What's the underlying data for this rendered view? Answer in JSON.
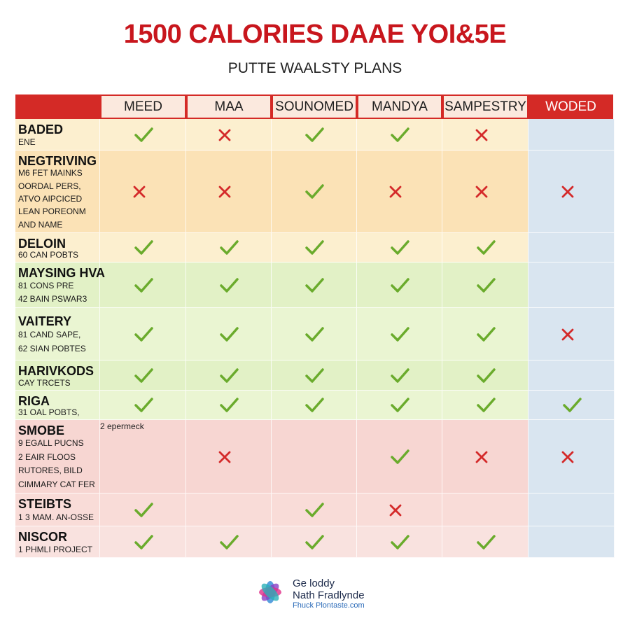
{
  "header": {
    "title": "1500 CALORIES DAAE YOI&5E",
    "subtitle": "PUTTE WAALSTY PLANS"
  },
  "table": {
    "columns": [
      "MEED",
      "MAA",
      "SOUNOMED",
      "MANDYA",
      "SAMPESTRY",
      "WODED"
    ],
    "rows": [
      {
        "title": "BADED",
        "details": [
          "ENE"
        ],
        "marks": [
          true,
          false,
          true,
          true,
          false,
          null
        ]
      },
      {
        "title": "NEGTRIVING",
        "details": [
          "M6 FET MAINKS",
          "OORDAL PERS,",
          "ATVO AIPCICED",
          "LEAN POREONM",
          "AND NAME"
        ],
        "marks": [
          false,
          false,
          true,
          false,
          false,
          false
        ]
      },
      {
        "title": "DELOIN",
        "details": [
          "60 CAN POBTS"
        ],
        "marks": [
          true,
          true,
          true,
          true,
          true,
          null
        ]
      },
      {
        "title": "MAYSING HVA",
        "details": [
          "81 CONS PRE",
          "42 BAIN PSWAR3"
        ],
        "marks": [
          true,
          true,
          true,
          true,
          true,
          null
        ]
      },
      {
        "title": "VAITERY",
        "details": [
          "81 CAND SAPE,",
          "62 SIAN POBTES"
        ],
        "marks": [
          true,
          true,
          true,
          true,
          true,
          false
        ]
      },
      {
        "title": "HARIVKODS",
        "details": [
          "CAY TRCETS"
        ],
        "marks": [
          true,
          true,
          true,
          true,
          true,
          null
        ]
      },
      {
        "title": "RIGA",
        "details": [
          "31 OAL POBTS,"
        ],
        "marks": [
          true,
          true,
          true,
          true,
          true,
          true
        ]
      },
      {
        "title": "SMOBE",
        "details": [
          "9 EGALL PUCNS",
          "2 EAIR FLOOS",
          "RUTORES, BILD",
          "CIMMARY CAT FER"
        ],
        "note": "2 epermeck",
        "marks": [
          null,
          false,
          null,
          true,
          false,
          false
        ]
      },
      {
        "title": "STEIBTS",
        "details": [
          "1 3 MAM. AN-OSSE"
        ],
        "marks": [
          true,
          null,
          true,
          false,
          null,
          null
        ]
      },
      {
        "title": "NISCOR",
        "details": [
          "1 PHMLI PROJECT"
        ],
        "marks": [
          true,
          true,
          true,
          true,
          true,
          null
        ]
      }
    ]
  },
  "footer": {
    "lines": [
      "Ge loddy",
      "Nath Fradlynde",
      "Fhuck Plontaste.com"
    ]
  }
}
